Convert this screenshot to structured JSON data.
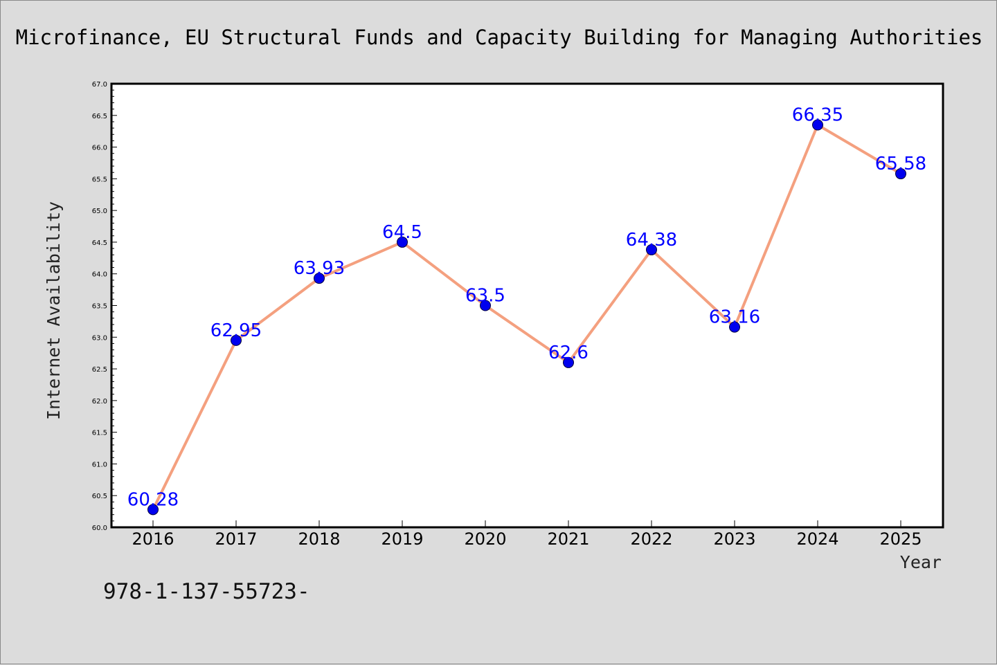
{
  "chart_data": {
    "type": "line",
    "title": "Microfinance, EU Structural Funds and Capacity Building for Managing Authorities",
    "xlabel": "Year",
    "ylabel": "Internet Availability",
    "categories": [
      "2016",
      "2017",
      "2018",
      "2019",
      "2020",
      "2021",
      "2022",
      "2023",
      "2024",
      "2025"
    ],
    "series": [
      {
        "values": [
          60.28,
          62.95,
          63.93,
          64.5,
          63.5,
          62.6,
          64.38,
          63.16,
          66.35,
          65.58
        ],
        "data_labels": [
          "60.28",
          "62.95",
          "63.93",
          "64.5",
          "63.5",
          "62.6",
          "64.38",
          "63.16",
          "66.35",
          "65.58"
        ],
        "line_color": "#f4a07f",
        "marker_color": "#0000ee"
      }
    ],
    "ylim": [
      60.0,
      67.0
    ],
    "yticks": [
      "60.0",
      "60.5",
      "61.0",
      "61.5",
      "62.0",
      "62.5",
      "63.0",
      "63.5",
      "64.0",
      "64.5",
      "65.0",
      "65.5",
      "66.0",
      "66.5",
      "67.0"
    ],
    "grid": false,
    "legend": "none"
  },
  "footer": {
    "text": "978-1-137-55723-"
  },
  "colors": {
    "background": "#dcdcdc",
    "plot_background": "#ffffff",
    "data_label": "#0000ff"
  }
}
